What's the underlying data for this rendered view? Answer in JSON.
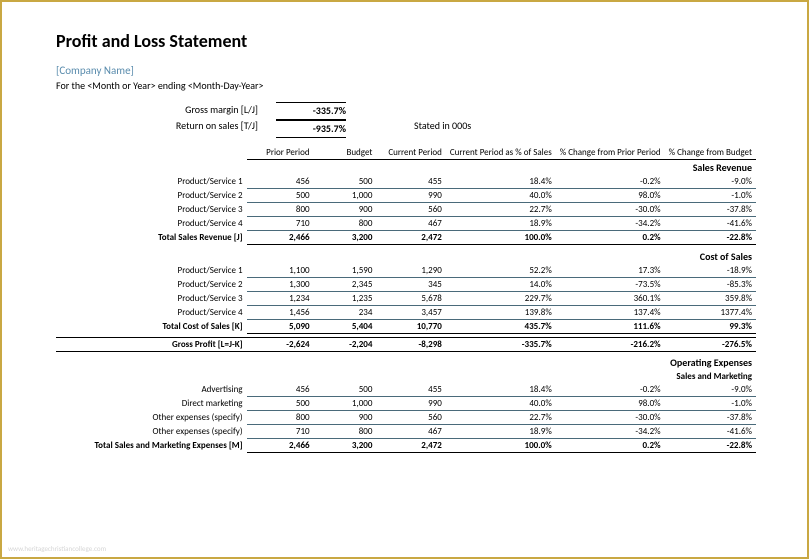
{
  "title": "Profit and Loss Statement",
  "company": "[Company Name]",
  "period": "For the <Month or Year> ending <Month-Day-Year>",
  "metrics": {
    "gross_margin_label": "Gross margin  [L/J]",
    "gross_margin_value": "-335.7%",
    "return_on_sales_label": "Return on sales  [T/J]",
    "return_on_sales_value": "-935.7%",
    "stated": "Stated in 000s"
  },
  "columns": {
    "c1": "Prior Period",
    "c2": "Budget",
    "c3": "Current Period",
    "c4": "Current Period as % of Sales",
    "c5": "% Change from Prior Period",
    "c6": "% Change from Budget"
  },
  "sections": {
    "sales": {
      "title": "Sales Revenue",
      "rows": [
        {
          "label": "Product/Service 1",
          "c1": "456",
          "c2": "500",
          "c3": "455",
          "c4": "18.4%",
          "c5": "-0.2%",
          "c6": "-9.0%"
        },
        {
          "label": "Product/Service 2",
          "c1": "500",
          "c2": "1,000",
          "c3": "990",
          "c4": "40.0%",
          "c5": "98.0%",
          "c6": "-1.0%"
        },
        {
          "label": "Product/Service 3",
          "c1": "800",
          "c2": "900",
          "c3": "560",
          "c4": "22.7%",
          "c5": "-30.0%",
          "c6": "-37.8%"
        },
        {
          "label": "Product/Service 4",
          "c1": "710",
          "c2": "800",
          "c3": "467",
          "c4": "18.9%",
          "c5": "-34.2%",
          "c6": "-41.6%"
        }
      ],
      "total": {
        "label": "Total Sales Revenue  [J]",
        "c1": "2,466",
        "c2": "3,200",
        "c3": "2,472",
        "c4": "100.0%",
        "c5": "0.2%",
        "c6": "-22.8%"
      }
    },
    "cost": {
      "title": "Cost of Sales",
      "rows": [
        {
          "label": "Product/Service 1",
          "c1": "1,100",
          "c2": "1,590",
          "c3": "1,290",
          "c4": "52.2%",
          "c5": "17.3%",
          "c6": "-18.9%"
        },
        {
          "label": "Product/Service 2",
          "c1": "1,300",
          "c2": "2,345",
          "c3": "345",
          "c4": "14.0%",
          "c5": "-73.5%",
          "c6": "-85.3%"
        },
        {
          "label": "Product/Service 3",
          "c1": "1,234",
          "c2": "1,235",
          "c3": "5,678",
          "c4": "229.7%",
          "c5": "360.1%",
          "c6": "359.8%"
        },
        {
          "label": "Product/Service 4",
          "c1": "1,456",
          "c2": "234",
          "c3": "3,457",
          "c4": "139.8%",
          "c5": "137.4%",
          "c6": "1377.4%"
        }
      ],
      "total": {
        "label": "Total Cost of Sales  [K]",
        "c1": "5,090",
        "c2": "5,404",
        "c3": "10,770",
        "c4": "435.7%",
        "c5": "111.6%",
        "c6": "99.3%"
      }
    },
    "gross_profit": {
      "label": "Gross Profit  [L=J-K]",
      "c1": "-2,624",
      "c2": "-2,204",
      "c3": "-8,298",
      "c4": "-335.7%",
      "c5": "-216.2%",
      "c6": "-276.5%"
    },
    "opex": {
      "title": "Operating Expenses",
      "sub_title": "Sales and Marketing",
      "rows": [
        {
          "label": "Advertising",
          "c1": "456",
          "c2": "500",
          "c3": "455",
          "c4": "18.4%",
          "c5": "-0.2%",
          "c6": "-9.0%"
        },
        {
          "label": "Direct marketing",
          "c1": "500",
          "c2": "1,000",
          "c3": "990",
          "c4": "40.0%",
          "c5": "98.0%",
          "c6": "-1.0%"
        },
        {
          "label": "Other expenses (specify)",
          "c1": "800",
          "c2": "900",
          "c3": "560",
          "c4": "22.7%",
          "c5": "-30.0%",
          "c6": "-37.8%"
        },
        {
          "label": "Other expenses (specify)",
          "c1": "710",
          "c2": "800",
          "c3": "467",
          "c4": "18.9%",
          "c5": "-34.2%",
          "c6": "-41.6%"
        }
      ],
      "total": {
        "label": "Total Sales and Marketing Expenses  [M]",
        "c1": "2,466",
        "c2": "3,200",
        "c3": "2,472",
        "c4": "100.0%",
        "c5": "0.2%",
        "c6": "-22.8%"
      }
    }
  },
  "watermark": "www.heritagechristiancollege.com"
}
